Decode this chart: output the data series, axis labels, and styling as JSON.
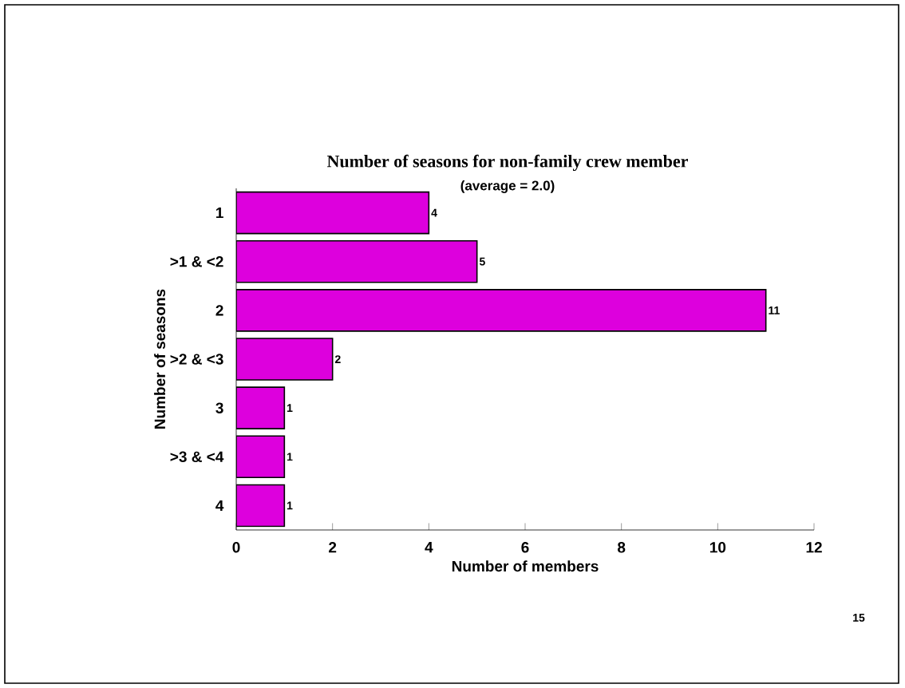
{
  "chart_data": {
    "type": "bar",
    "orientation": "horizontal",
    "title": "Number of seasons for non-family crew member",
    "subtitle": "(average = 2.0)",
    "xlabel": "Number of members",
    "ylabel": "Number of seasons",
    "categories": [
      "1",
      ">1 & <2",
      "2",
      ">2 & <3",
      "3",
      ">3 & <4",
      "4"
    ],
    "values": [
      4,
      5,
      11,
      2,
      1,
      1,
      1
    ],
    "color": "#dd00dd",
    "xlim": [
      0,
      12
    ],
    "xticks": [
      0,
      2,
      4,
      6,
      8,
      10,
      12
    ],
    "data_labels": true,
    "grid": false,
    "annotations": [
      "15"
    ]
  }
}
